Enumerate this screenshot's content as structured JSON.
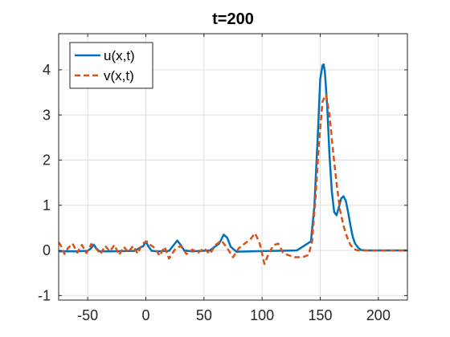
{
  "chart_data": {
    "type": "line",
    "title": "t=200",
    "xlabel": "",
    "ylabel": "",
    "xlim": [
      -75,
      225
    ],
    "ylim": [
      -1.1,
      4.8
    ],
    "xticks": [
      -50,
      0,
      50,
      100,
      150,
      200
    ],
    "yticks": [
      -1,
      0,
      1,
      2,
      3,
      4
    ],
    "grid": true,
    "legend_position": "top-left",
    "series": [
      {
        "name": "u(x,t)",
        "color": "#0072BD",
        "style": "solid",
        "x": [
          -75,
          -60,
          -50,
          -47,
          -45,
          -43,
          -40,
          -30,
          -10,
          -2,
          0,
          2,
          5,
          10,
          20,
          24,
          27,
          30,
          33,
          40,
          55,
          63,
          67,
          70,
          73,
          78,
          90,
          110,
          130,
          142,
          145,
          148,
          150,
          152,
          153,
          154,
          156,
          158,
          160,
          162,
          164,
          166,
          168,
          170,
          172,
          174,
          176,
          178,
          180,
          183,
          185,
          190,
          200,
          225
        ],
        "y": [
          -0.02,
          -0.02,
          -0.01,
          0.05,
          0.13,
          0.06,
          -0.02,
          -0.02,
          -0.01,
          0.1,
          0.2,
          0.1,
          -0.01,
          -0.02,
          -0.01,
          0.12,
          0.22,
          0.12,
          0.0,
          -0.02,
          0.0,
          0.15,
          0.35,
          0.28,
          0.08,
          -0.03,
          -0.02,
          -0.01,
          0.0,
          0.2,
          1.0,
          2.6,
          3.8,
          4.1,
          4.12,
          3.95,
          3.2,
          2.1,
          1.3,
          0.85,
          0.78,
          0.95,
          1.15,
          1.2,
          1.1,
          0.85,
          0.55,
          0.3,
          0.15,
          0.05,
          0.01,
          0.0,
          0.0,
          0.0
        ]
      },
      {
        "name": "v(x,t)",
        "color": "#D95319",
        "style": "dashed",
        "x": [
          -75,
          -73,
          -70,
          -67,
          -63,
          -59,
          -55,
          -51,
          -47,
          -43,
          -39,
          -35,
          -31,
          -27,
          -23,
          -19,
          -15,
          -11,
          -7,
          -3,
          1,
          4,
          8,
          12,
          16,
          20,
          25,
          30,
          35,
          40,
          45,
          50,
          55,
          60,
          65,
          70,
          75,
          80,
          85,
          90,
          94,
          98,
          102,
          106,
          110,
          114,
          118,
          122,
          128,
          135,
          140,
          143,
          146,
          149,
          152,
          155,
          158,
          161,
          164,
          167,
          170,
          173,
          176,
          179,
          182,
          185,
          190,
          200,
          225
        ],
        "y": [
          0.18,
          0.1,
          -0.08,
          0.05,
          0.15,
          -0.05,
          0.12,
          -0.06,
          0.14,
          0.05,
          -0.08,
          0.1,
          -0.02,
          0.12,
          -0.1,
          0.08,
          -0.04,
          0.1,
          -0.07,
          0.15,
          0.2,
          0.12,
          0.05,
          -0.12,
          0.08,
          -0.18,
          0.02,
          0.1,
          -0.08,
          0.02,
          -0.05,
          0.05,
          -0.08,
          0.12,
          0.22,
          0.05,
          -0.15,
          0.05,
          0.15,
          0.25,
          0.38,
          0.15,
          -0.3,
          -0.05,
          0.12,
          0.15,
          -0.05,
          -0.1,
          -0.15,
          -0.15,
          -0.1,
          0.2,
          1.2,
          2.4,
          3.3,
          3.45,
          3.0,
          2.2,
          1.5,
          0.9,
          0.55,
          0.3,
          0.12,
          0.03,
          0.0,
          0.0,
          0.0,
          0.0,
          0.0
        ]
      }
    ]
  }
}
